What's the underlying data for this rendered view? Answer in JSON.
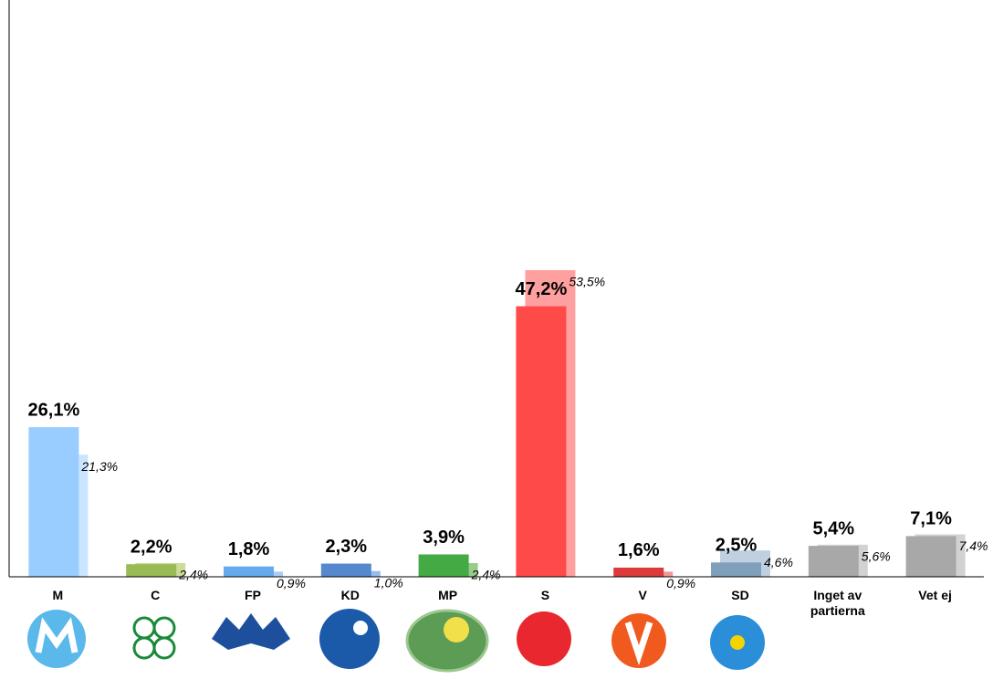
{
  "chart_data": {
    "type": "bar",
    "categories": [
      "M",
      "C",
      "FP",
      "KD",
      "MP",
      "S",
      "V",
      "SD",
      "Inget av partierna",
      "Vet ej"
    ],
    "ylim": [
      0,
      100
    ],
    "series": [
      {
        "colors": [
          "#99ccff",
          "#99bb55",
          "#66aaee",
          "#5588cc",
          "#44aa44",
          "#ff4a4a",
          "#dd3b3b",
          "#7f9fbb",
          "#a8a8a8",
          "#a8a8a8"
        ],
        "values": [
          26.1,
          2.2,
          1.8,
          2.3,
          3.9,
          47.2,
          1.6,
          2.5,
          5.4,
          7.1
        ],
        "value_labels": [
          "26,1%",
          "2,2%",
          "1,8%",
          "2,3%",
          "3,9%",
          "47,2%",
          "1,6%",
          "2,5%",
          "5,4%",
          "7,1%"
        ]
      },
      {
        "colors": [
          "#cce5ff",
          "#ccdd99",
          "#aaccf5",
          "#99bbee",
          "#99cc88",
          "#ffa0a0",
          "#ee9a9a",
          "#c0d0e0",
          "#d2d2d2",
          "#d2d2d2"
        ],
        "values": [
          21.3,
          2.4,
          0.9,
          1.0,
          2.4,
          53.5,
          0.9,
          4.6,
          5.6,
          7.4
        ],
        "value_labels": [
          "21,3%",
          "2,4%",
          "0,9%",
          "1,0%",
          "2,4%",
          "53,5%",
          "0,9%",
          "4,6%",
          "5,6%",
          "7,4%"
        ]
      }
    ]
  }
}
